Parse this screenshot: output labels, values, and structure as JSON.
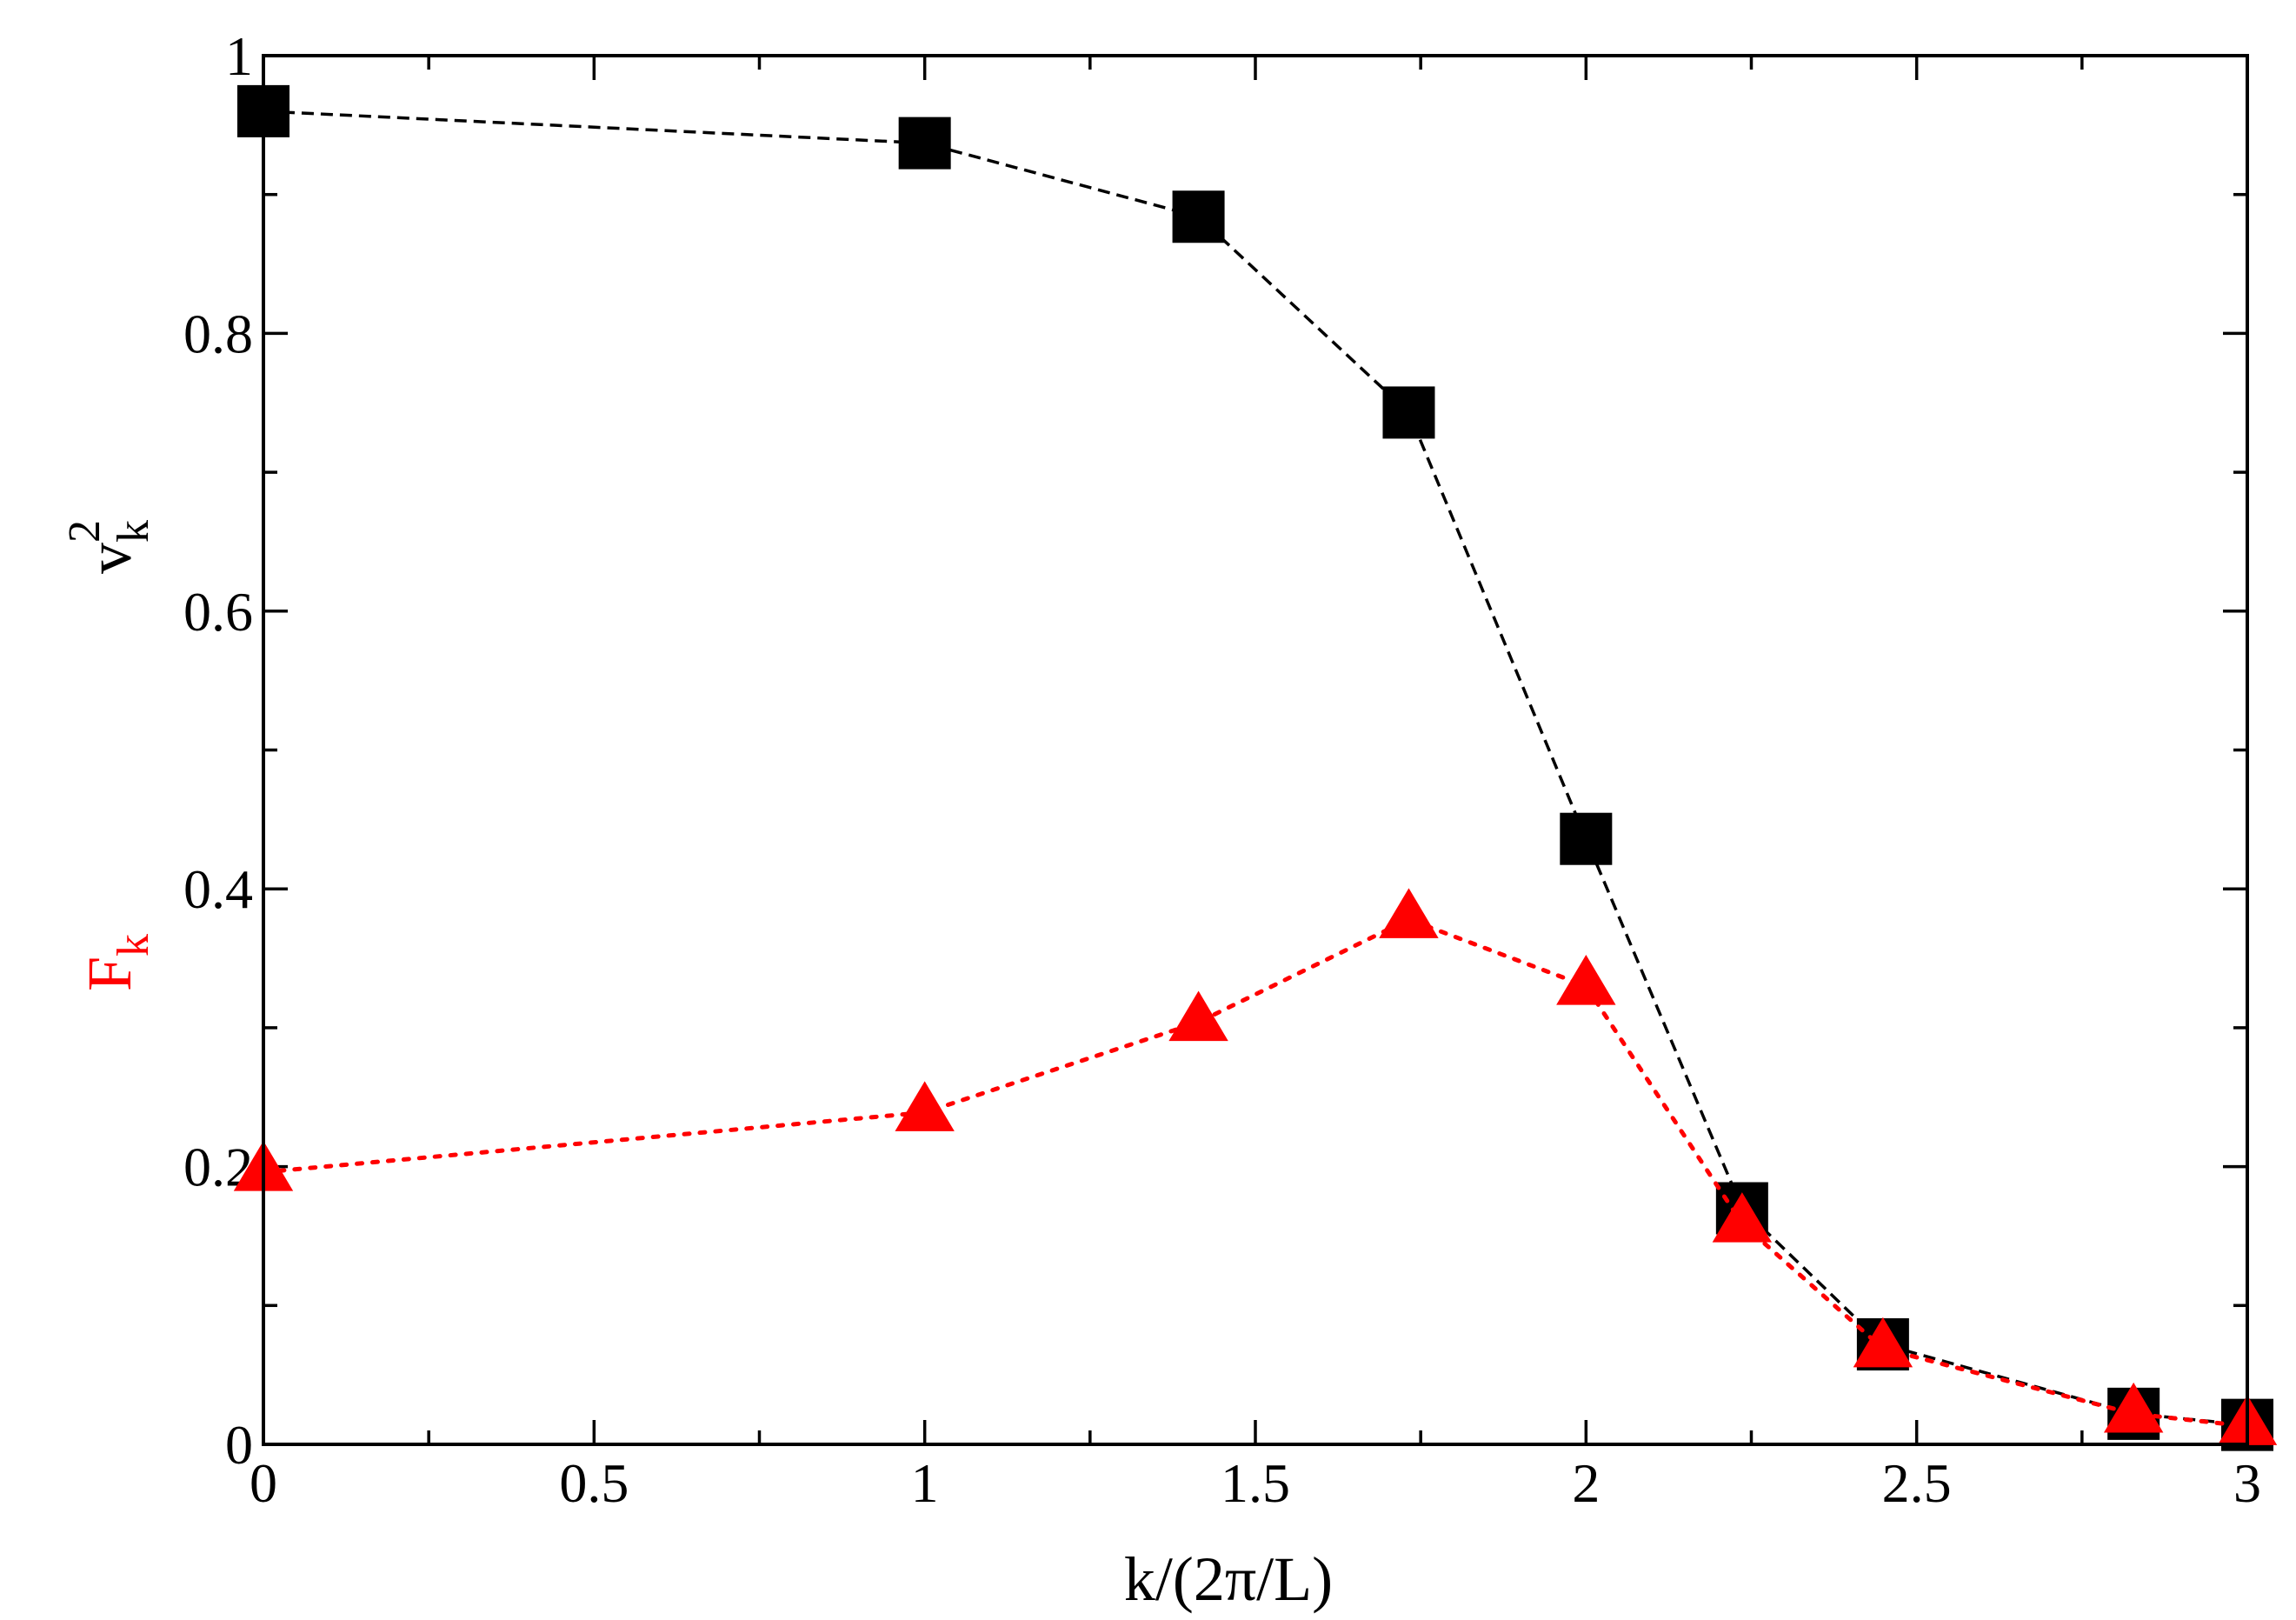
{
  "chart_data": {
    "type": "line",
    "xlabel": "k/(2π/L)",
    "ylabel_parts": {
      "v_base": "v",
      "v_sup": "2",
      "v_sub": "k",
      "f_base": "F",
      "f_sub": "k"
    },
    "xlim": [
      0,
      3
    ],
    "ylim": [
      0,
      1
    ],
    "x_major_ticks": [
      0,
      0.5,
      1,
      1.5,
      2,
      2.5,
      3
    ],
    "x_tick_labels": [
      "0",
      "0.5",
      "1",
      "1.5",
      "2",
      "2.5",
      "3"
    ],
    "x_minor_ticks": [
      0.25,
      0.75,
      1.25,
      1.75,
      2.25,
      2.75
    ],
    "y_major_ticks": [
      0,
      0.2,
      0.4,
      0.6,
      0.8,
      1
    ],
    "y_tick_labels": [
      "0",
      "0.2",
      "0.4",
      "0.6",
      "0.8",
      "1"
    ],
    "y_minor_ticks": [
      0.1,
      0.3,
      0.5,
      0.7,
      0.9
    ],
    "grid": false,
    "series": [
      {
        "name": "v_k^2",
        "color": "#000000",
        "marker": "square",
        "line": "dashed",
        "x": [
          0,
          1,
          1.414,
          1.732,
          2,
          2.236,
          2.449,
          2.828,
          3
        ],
        "y": [
          0.96,
          0.937,
          0.884,
          0.743,
          0.436,
          0.17,
          0.072,
          0.022,
          0.014
        ]
      },
      {
        "name": "F_k",
        "color": "#ff0000",
        "marker": "triangle",
        "line": "dotted",
        "x": [
          0,
          1,
          1.414,
          1.732,
          2,
          2.236,
          2.449,
          2.828,
          3
        ],
        "y": [
          0.196,
          0.239,
          0.304,
          0.378,
          0.33,
          0.159,
          0.069,
          0.022,
          0.013
        ]
      }
    ]
  }
}
